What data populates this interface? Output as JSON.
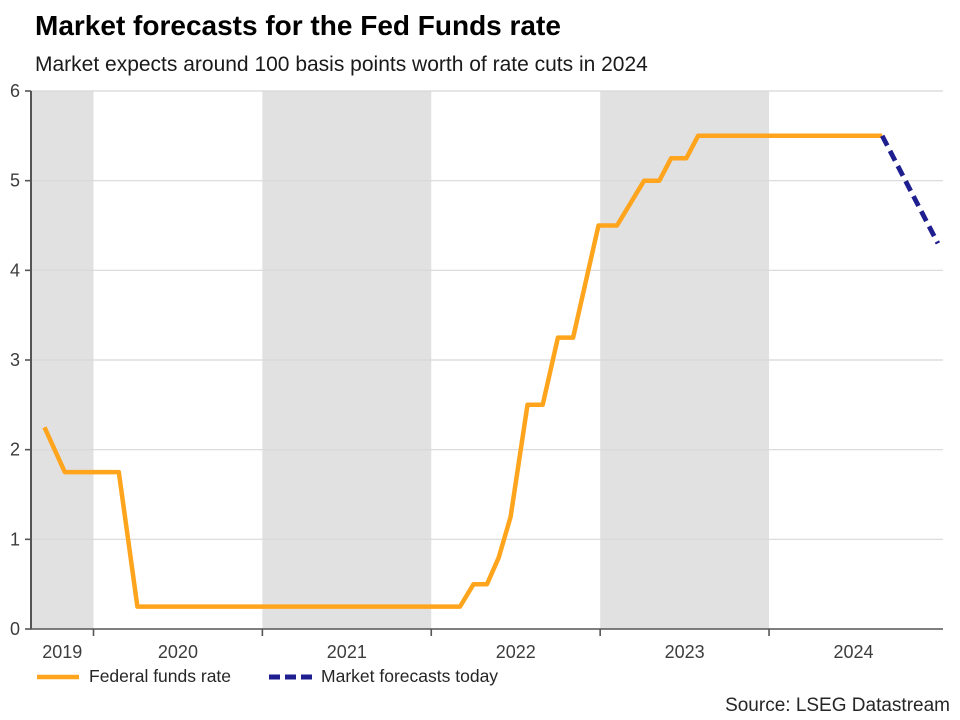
{
  "header": {
    "title": "Market forecasts for the Fed Funds rate",
    "subtitle": "Market expects around 100 basis points worth of rate cuts in 2024"
  },
  "source": "Source: LSEG Datastream",
  "chart_data": {
    "type": "line",
    "title": "Market forecasts for the Fed Funds rate",
    "subtitle": "Market expects around 100 basis points worth of rate cuts in 2024",
    "grid": "horizontal",
    "legend_position": "bottom-left",
    "x_axis": {
      "min": 2019.63,
      "max": 2025.03,
      "tick_years": [
        2020,
        2021,
        2022,
        2023,
        2024
      ],
      "year_labels": [
        "2019",
        "2020",
        "2021",
        "2022",
        "2023",
        "2024"
      ]
    },
    "y_axis": {
      "min": 0,
      "max": 6,
      "ticks": [
        "0",
        "1",
        "2",
        "3",
        "4",
        "5",
        "6"
      ]
    },
    "shaded_periods": [
      [
        2019.0,
        2020.0
      ],
      [
        2021.0,
        2022.0
      ],
      [
        2023.0,
        2024.0
      ]
    ],
    "band_color": "#E1E1E1",
    "gridline_color": "#D8D8D8",
    "axis_color": "#555555",
    "tick_label_color": "#3d3d3d",
    "series": [
      {
        "name": "Federal funds rate",
        "color": "#FFA41D",
        "style": "solid",
        "points": [
          [
            2019.71,
            2.25
          ],
          [
            2019.83,
            1.75
          ],
          [
            2020.15,
            1.75
          ],
          [
            2020.26,
            0.25
          ],
          [
            2022.17,
            0.25
          ],
          [
            2022.25,
            0.5
          ],
          [
            2022.33,
            0.5
          ],
          [
            2022.4,
            0.8
          ],
          [
            2022.47,
            1.25
          ],
          [
            2022.57,
            2.5
          ],
          [
            2022.66,
            2.5
          ],
          [
            2022.75,
            3.25
          ],
          [
            2022.84,
            3.25
          ],
          [
            2022.99,
            4.5
          ],
          [
            2023.1,
            4.5
          ],
          [
            2023.26,
            5.0
          ],
          [
            2023.35,
            5.0
          ],
          [
            2023.42,
            5.25
          ],
          [
            2023.51,
            5.25
          ],
          [
            2023.58,
            5.5
          ],
          [
            2024.67,
            5.5
          ]
        ]
      },
      {
        "name": "Market forecasts today",
        "color": "#1E1E8F",
        "style": "dashed",
        "points": [
          [
            2024.67,
            5.5
          ],
          [
            2025.0,
            4.3
          ]
        ]
      }
    ]
  },
  "legend": {
    "items": [
      {
        "label": "Federal funds rate"
      },
      {
        "label": "Market forecasts today"
      }
    ]
  }
}
